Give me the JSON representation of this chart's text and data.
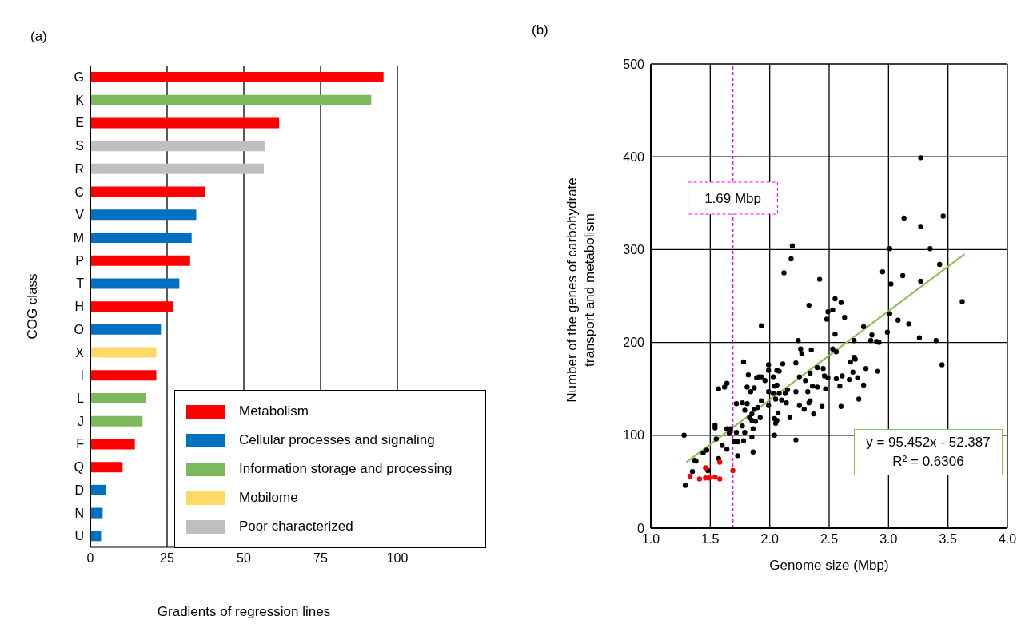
{
  "chart_data": [
    {
      "type": "bar",
      "orientation": "horizontal",
      "stacked": true,
      "title": "(a)",
      "xlabel": "Gradients of regression lines",
      "ylabel": "COG class",
      "categories": [
        "G",
        "K",
        "E",
        "S",
        "R",
        "C",
        "V",
        "M",
        "P",
        "T",
        "H",
        "O",
        "X",
        "I",
        "L",
        "J",
        "F",
        "Q",
        "D",
        "N",
        "U"
      ],
      "series": [
        {
          "name": "Metabolism",
          "color": "#ff0000",
          "values": [
            95.5,
            null,
            61.5,
            null,
            null,
            37.5,
            null,
            null,
            32.5,
            null,
            27,
            null,
            null,
            21.5,
            null,
            null,
            14.5,
            10.5,
            null,
            null,
            null
          ]
        },
        {
          "name": "Cellular processes and signaling",
          "color": "#0070c0",
          "values": [
            null,
            null,
            null,
            null,
            null,
            null,
            34.5,
            33,
            null,
            29,
            null,
            23,
            null,
            null,
            null,
            null,
            null,
            null,
            5,
            4,
            3.5
          ]
        },
        {
          "name": "Information storage and processing",
          "color": "#7cb95c",
          "values": [
            null,
            91.5,
            null,
            null,
            null,
            null,
            null,
            null,
            null,
            null,
            null,
            null,
            null,
            null,
            18,
            17,
            null,
            null,
            null,
            null,
            null
          ]
        },
        {
          "name": "Mobilome",
          "color": "#ffd966",
          "values": [
            null,
            null,
            null,
            null,
            null,
            null,
            null,
            null,
            null,
            null,
            null,
            null,
            21.5,
            null,
            null,
            null,
            null,
            null,
            null,
            null,
            null
          ]
        },
        {
          "name": "Poor characterized",
          "color": "#bfbfbf",
          "values": [
            null,
            null,
            null,
            57,
            56.5,
            null,
            null,
            null,
            null,
            null,
            null,
            null,
            null,
            null,
            null,
            null,
            null,
            null,
            null,
            null,
            null
          ]
        }
      ],
      "xlim": [
        0,
        100
      ],
      "xticks": [
        0,
        25,
        50,
        75,
        100
      ],
      "grid": "x",
      "legend": "bottom right"
    },
    {
      "type": "scatter",
      "title": "(b)",
      "xlabel": "Genome size (Mbp)",
      "ylabel": "Number of the genes of carbohydrate transport and metabolism",
      "xlim": [
        1,
        4
      ],
      "xticks": [
        {
          "value": 1,
          "label": "1.0"
        },
        {
          "value": 1.5,
          "label": "1.5"
        },
        {
          "value": 2,
          "label": "2.0"
        },
        {
          "value": 2.5,
          "label": "2.5"
        },
        {
          "value": 3,
          "label": "3.0"
        },
        {
          "value": 3.5,
          "label": "3.5"
        },
        {
          "value": 4,
          "label": "4.0"
        }
      ],
      "ylim": [
        0,
        500
      ],
      "yticks": [
        0,
        100,
        200,
        300,
        400,
        500
      ],
      "grid": true,
      "legend": false,
      "marker": "circle",
      "series": [
        {
          "color": "#000000",
          "x": [
            1.29,
            1.28,
            1.35,
            1.37,
            1.38,
            1.44,
            1.47,
            1.48,
            1.54,
            1.54,
            1.55,
            1.57,
            1.57,
            1.6,
            1.62,
            1.64,
            1.64,
            1.64,
            1.66,
            1.67,
            1.7,
            1.73,
            1.73,
            1.72,
            1.77,
            1.72,
            1.78,
            1.77,
            1.78,
            1.79,
            1.81,
            1.79,
            1.81,
            1.82,
            1.83,
            1.85,
            1.85,
            1.84,
            1.85,
            1.86,
            1.86,
            1.87,
            1.88,
            1.87,
            1.89,
            1.91,
            1.93,
            1.9,
            1.92,
            1.93,
            1.93,
            1.96,
            1.99,
            1.99,
            1.99,
            1.99,
            2.03,
            2.04,
            2.06,
            2.03,
            2.05,
            2.04,
            2.04,
            2.06,
            2.05,
            2.07,
            2.06,
            2.08,
            2.08,
            2.1,
            2.11,
            2.13,
            2.14,
            2.15,
            2.17,
            2.12,
            2.18,
            2.19,
            2.22,
            2.22,
            2.22,
            2.24,
            2.25,
            2.25,
            2.26,
            2.27,
            2.29,
            2.3,
            2.32,
            2.33,
            2.34,
            2.34,
            2.35,
            2.33,
            2.36,
            2.37,
            2.4,
            2.4,
            2.42,
            2.44,
            2.45,
            2.46,
            2.47,
            2.49,
            2.48,
            2.49,
            2.53,
            2.55,
            2.6,
            2.63,
            2.55,
            2.53,
            2.56,
            2.56,
            2.59,
            2.61,
            2.6,
            2.67,
            2.68,
            3.27,
            3.13,
            3.46,
            3.27,
            3.01,
            3.35,
            3.43,
            2.95,
            3.12,
            3.02,
            3.27,
            3.62,
            3.01,
            3.08,
            3.17,
            2.79,
            2.86,
            2.99,
            2.71,
            2.85,
            2.9,
            2.92,
            3.26,
            3.4,
            3.45,
            2.71,
            2.72,
            2.81,
            2.7,
            2.91,
            2.74,
            2.79,
            2.75
          ],
          "values": [
            46,
            100,
            61,
            73,
            72,
            81,
            84,
            62,
            111,
            108,
            96,
            75,
            150,
            89,
            152,
            156,
            107,
            85,
            102,
            107,
            93,
            93,
            78,
            134,
            135,
            103,
            94,
            110,
            179,
            127,
            134,
            103,
            152,
            165,
            119,
            116,
            123,
            147,
            98,
            82,
            107,
            151,
            115,
            128,
            162,
            163,
            163,
            130,
            119,
            137,
            218,
            159,
            176,
            170,
            147,
            132,
            163,
            153,
            154,
            145,
            139,
            100,
            118,
            116,
            113,
            124,
            170,
            169,
            145,
            138,
            177,
            145,
            135,
            149,
            119,
            275,
            290,
            304,
            178,
            147,
            95,
            202,
            163,
            132,
            193,
            188,
            128,
            159,
            147,
            135,
            137,
            167,
            192,
            240,
            153,
            123,
            173,
            152,
            268,
            131,
            172,
            164,
            150,
            162,
            225,
            233,
            235,
            247,
            243,
            227,
            209,
            193,
            190,
            161,
            153,
            164,
            131,
            160,
            179,
            399,
            334,
            336,
            325,
            301,
            301,
            284,
            276,
            272,
            263,
            266,
            244,
            231,
            224,
            220,
            217,
            208,
            211,
            202,
            202,
            201,
            200,
            205,
            202,
            176,
            184,
            182,
            172,
            168,
            169,
            162,
            154,
            139
          ]
        },
        {
          "color": "#ff0000",
          "x": [
            1.33,
            1.41,
            1.46,
            1.46,
            1.49,
            1.54,
            1.58,
            1.58,
            1.69
          ],
          "values": [
            56,
            53,
            65,
            54,
            54,
            55,
            53,
            71,
            62
          ]
        },
        {
          "type": "line",
          "color": "#8cc152",
          "marker": "none",
          "x": [
            1.3,
            3.64
          ],
          "values": [
            71,
            295
          ]
        }
      ],
      "ref_lines": [
        {
          "axis": "x",
          "value": 1.69,
          "label": "1.69 Mbp",
          "color": "#ff00ff",
          "line_style": "dashed"
        }
      ],
      "annotations": [
        "y = 95.452x - 52.387",
        "R² = 0.6306"
      ]
    }
  ]
}
